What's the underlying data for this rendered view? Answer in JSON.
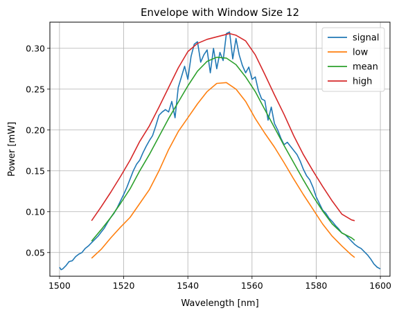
{
  "chart_data": {
    "type": "line",
    "title": "Envelope with Window Size 12",
    "xlabel": "Wavelength [nm]",
    "ylabel": "Power [mW]",
    "xlim": [
      1497,
      1603
    ],
    "ylim": [
      0.021,
      0.332
    ],
    "xticks": [
      1500,
      1520,
      1540,
      1560,
      1580,
      1600
    ],
    "yticks": [
      0.05,
      0.1,
      0.15,
      0.2,
      0.25,
      0.3
    ],
    "xtick_labels": [
      "1500",
      "1520",
      "1540",
      "1560",
      "1580",
      "1600"
    ],
    "ytick_labels": [
      "0.05",
      "0.10",
      "0.15",
      "0.20",
      "0.25",
      "0.30"
    ],
    "grid": true,
    "legend_position": "top-right",
    "series": [
      {
        "name": "signal",
        "color": "#1f77b4",
        "x": [
          1500,
          1500.5,
          1501,
          1502,
          1503,
          1504,
          1505,
          1506,
          1507,
          1508,
          1509,
          1510,
          1511,
          1512,
          1513,
          1514,
          1515,
          1516,
          1517,
          1518,
          1519,
          1520,
          1521,
          1522,
          1523,
          1524,
          1525,
          1526,
          1527,
          1528,
          1529,
          1530,
          1531,
          1532,
          1533,
          1534,
          1535,
          1536,
          1537,
          1538,
          1539,
          1540,
          1541,
          1542,
          1543,
          1544,
          1545,
          1546,
          1547,
          1548,
          1549,
          1550,
          1551,
          1552,
          1553,
          1554,
          1555,
          1556,
          1557,
          1558,
          1559,
          1560,
          1561,
          1562,
          1563,
          1564,
          1565,
          1566,
          1567,
          1568,
          1569,
          1570,
          1571,
          1572,
          1573,
          1574,
          1575,
          1576,
          1577,
          1578,
          1579,
          1580,
          1581,
          1582,
          1583,
          1584,
          1585,
          1586,
          1587,
          1588,
          1589,
          1590,
          1591,
          1592,
          1593,
          1594,
          1595,
          1596,
          1597,
          1598,
          1599,
          1600
        ],
        "y": [
          0.032,
          0.029,
          0.03,
          0.034,
          0.039,
          0.04,
          0.045,
          0.048,
          0.05,
          0.055,
          0.058,
          0.062,
          0.066,
          0.07,
          0.075,
          0.08,
          0.087,
          0.093,
          0.098,
          0.105,
          0.113,
          0.121,
          0.13,
          0.14,
          0.15,
          0.158,
          0.163,
          0.172,
          0.18,
          0.187,
          0.193,
          0.205,
          0.218,
          0.222,
          0.225,
          0.222,
          0.235,
          0.215,
          0.252,
          0.265,
          0.278,
          0.262,
          0.29,
          0.305,
          0.308,
          0.283,
          0.292,
          0.298,
          0.27,
          0.3,
          0.275,
          0.295,
          0.285,
          0.318,
          0.32,
          0.287,
          0.312,
          0.292,
          0.279,
          0.27,
          0.277,
          0.262,
          0.265,
          0.248,
          0.238,
          0.236,
          0.212,
          0.228,
          0.208,
          0.2,
          0.19,
          0.182,
          0.185,
          0.18,
          0.175,
          0.17,
          0.162,
          0.152,
          0.144,
          0.139,
          0.13,
          0.118,
          0.11,
          0.102,
          0.098,
          0.092,
          0.088,
          0.083,
          0.079,
          0.074,
          0.072,
          0.068,
          0.064,
          0.06,
          0.057,
          0.055,
          0.051,
          0.047,
          0.042,
          0.036,
          0.032,
          0.03
        ]
      },
      {
        "name": "low",
        "color": "#ff7f0e",
        "x": [
          1510,
          1513,
          1516,
          1519,
          1522,
          1525,
          1528,
          1531,
          1534,
          1537,
          1540,
          1543,
          1546,
          1549,
          1552,
          1555,
          1558,
          1561,
          1564,
          1567,
          1570,
          1573,
          1576,
          1579,
          1582,
          1585,
          1588,
          1591,
          1592
        ],
        "y": [
          0.043,
          0.054,
          0.068,
          0.081,
          0.093,
          0.11,
          0.127,
          0.15,
          0.176,
          0.198,
          0.215,
          0.232,
          0.247,
          0.257,
          0.258,
          0.25,
          0.235,
          0.214,
          0.196,
          0.179,
          0.16,
          0.14,
          0.121,
          0.103,
          0.085,
          0.07,
          0.058,
          0.047,
          0.044
        ]
      },
      {
        "name": "mean",
        "color": "#2ca02c",
        "x": [
          1510,
          1513,
          1516,
          1519,
          1522,
          1525,
          1528,
          1531,
          1534,
          1537,
          1540,
          1543,
          1546,
          1549,
          1552,
          1555,
          1558,
          1561,
          1564,
          1567,
          1570,
          1573,
          1576,
          1579,
          1582,
          1585,
          1588,
          1591,
          1592
        ],
        "y": [
          0.064,
          0.078,
          0.093,
          0.11,
          0.128,
          0.15,
          0.17,
          0.192,
          0.214,
          0.234,
          0.254,
          0.272,
          0.284,
          0.289,
          0.288,
          0.28,
          0.265,
          0.247,
          0.225,
          0.203,
          0.181,
          0.16,
          0.139,
          0.119,
          0.101,
          0.085,
          0.074,
          0.068,
          0.065
        ]
      },
      {
        "name": "high",
        "color": "#d62728",
        "x": [
          1510,
          1513,
          1516,
          1519,
          1522,
          1525,
          1528,
          1531,
          1534,
          1537,
          1540,
          1543,
          1546,
          1549,
          1552,
          1553,
          1555,
          1558,
          1561,
          1564,
          1567,
          1570,
          1573,
          1576,
          1579,
          1582,
          1585,
          1588,
          1591,
          1592
        ],
        "y": [
          0.089,
          0.106,
          0.124,
          0.143,
          0.163,
          0.186,
          0.205,
          0.228,
          0.252,
          0.276,
          0.296,
          0.306,
          0.311,
          0.314,
          0.317,
          0.318,
          0.316,
          0.309,
          0.292,
          0.268,
          0.243,
          0.219,
          0.193,
          0.17,
          0.15,
          0.131,
          0.113,
          0.097,
          0.09,
          0.089
        ]
      }
    ]
  }
}
